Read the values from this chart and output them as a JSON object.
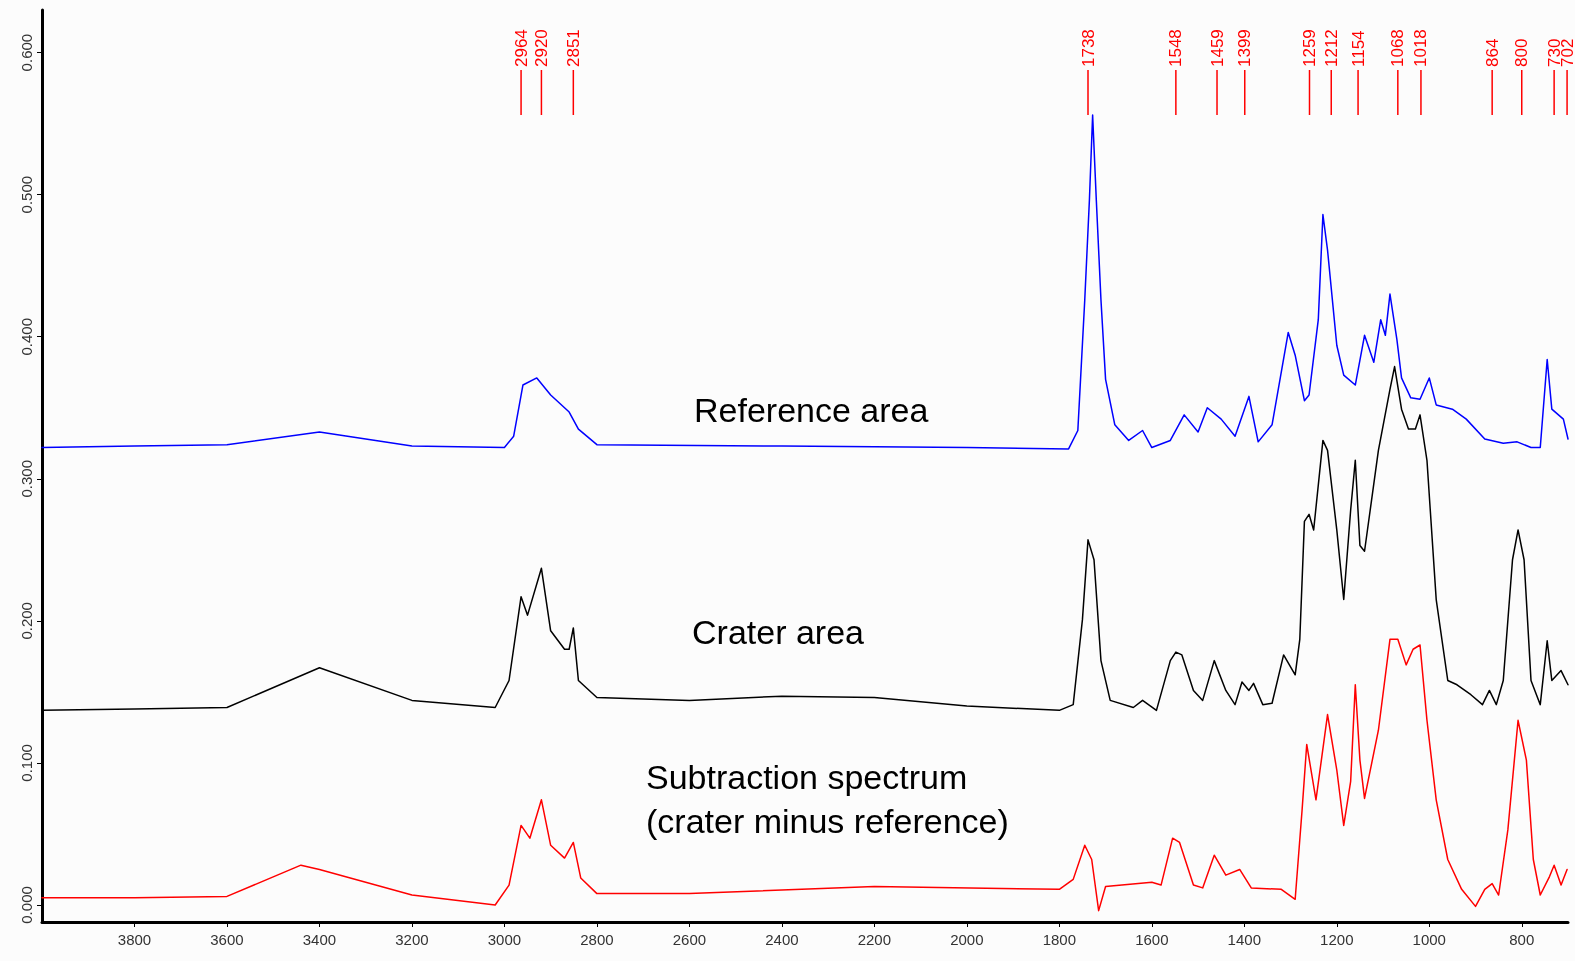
{
  "chart_data": {
    "type": "line",
    "xlim": [
      4000,
      700
    ],
    "xticks": [
      3800,
      3600,
      3400,
      3200,
      3000,
      2800,
      2600,
      2400,
      2200,
      2000,
      1800,
      1600,
      1400,
      1200,
      1000,
      800
    ],
    "ylim": [
      -0.012,
      0.63
    ],
    "yticks": [
      {
        "value": 0,
        "label": "0.000"
      },
      {
        "value": 0.1,
        "label": "0.100"
      },
      {
        "value": 0.2,
        "label": "0.200"
      },
      {
        "value": 0.3,
        "label": "0.300"
      },
      {
        "value": 0.4,
        "label": "0.400"
      },
      {
        "value": 0.5,
        "label": "0.500"
      },
      {
        "value": 0.6,
        "label": "0.600"
      }
    ],
    "marker": "none",
    "line_style": "solid",
    "series": [
      {
        "name": "Reference area",
        "color": "#0000ff",
        "x": [
          4000,
          3800,
          3600,
          3400,
          3200,
          3000,
          2980,
          2960,
          2930,
          2900,
          2860,
          2840,
          2800,
          2400,
          2000,
          1780,
          1760,
          1745,
          1735,
          1728,
          1720,
          1710,
          1700,
          1680,
          1650,
          1620,
          1600,
          1560,
          1530,
          1500,
          1480,
          1450,
          1420,
          1390,
          1370,
          1340,
          1305,
          1290,
          1270,
          1260,
          1240,
          1230,
          1220,
          1200,
          1185,
          1160,
          1140,
          1120,
          1105,
          1095,
          1085,
          1070,
          1060,
          1040,
          1020,
          1000,
          985,
          950,
          920,
          880,
          840,
          810,
          780,
          760,
          745,
          735,
          710,
          700
        ],
        "values": [
          0.322,
          0.323,
          0.324,
          0.333,
          0.323,
          0.322,
          0.33,
          0.366,
          0.371,
          0.359,
          0.347,
          0.335,
          0.324,
          0.323,
          0.322,
          0.321,
          0.334,
          0.426,
          0.496,
          0.556,
          0.496,
          0.426,
          0.37,
          0.338,
          0.327,
          0.334,
          0.322,
          0.327,
          0.345,
          0.333,
          0.35,
          0.342,
          0.33,
          0.358,
          0.326,
          0.338,
          0.403,
          0.387,
          0.355,
          0.359,
          0.412,
          0.486,
          0.461,
          0.394,
          0.373,
          0.366,
          0.401,
          0.382,
          0.412,
          0.401,
          0.43,
          0.398,
          0.371,
          0.357,
          0.356,
          0.371,
          0.352,
          0.349,
          0.342,
          0.328,
          0.325,
          0.326,
          0.322,
          0.322,
          0.384,
          0.349,
          0.342,
          0.328
        ]
      },
      {
        "name": "Crater area",
        "color": "#000000",
        "x": [
          4000,
          3800,
          3600,
          3400,
          3200,
          3020,
          2990,
          2964,
          2950,
          2920,
          2900,
          2870,
          2860,
          2851,
          2840,
          2800,
          2600,
          2400,
          2200,
          2000,
          1800,
          1770,
          1750,
          1738,
          1725,
          1710,
          1690,
          1640,
          1620,
          1590,
          1560,
          1548,
          1535,
          1510,
          1490,
          1465,
          1440,
          1420,
          1405,
          1390,
          1380,
          1360,
          1340,
          1315,
          1290,
          1280,
          1270,
          1260,
          1250,
          1230,
          1220,
          1200,
          1185,
          1170,
          1160,
          1150,
          1140,
          1110,
          1085,
          1075,
          1060,
          1045,
          1030,
          1020,
          1005,
          985,
          960,
          940,
          910,
          885,
          870,
          855,
          840,
          820,
          808,
          795,
          780,
          760,
          745,
          735,
          715,
          700
        ],
        "values": [
          0.137,
          0.138,
          0.139,
          0.167,
          0.144,
          0.139,
          0.158,
          0.217,
          0.204,
          0.237,
          0.193,
          0.18,
          0.18,
          0.195,
          0.158,
          0.146,
          0.144,
          0.147,
          0.146,
          0.14,
          0.137,
          0.141,
          0.201,
          0.257,
          0.243,
          0.172,
          0.144,
          0.139,
          0.144,
          0.137,
          0.172,
          0.178,
          0.176,
          0.151,
          0.144,
          0.172,
          0.151,
          0.141,
          0.157,
          0.151,
          0.156,
          0.141,
          0.142,
          0.176,
          0.162,
          0.187,
          0.27,
          0.275,
          0.264,
          0.327,
          0.32,
          0.264,
          0.215,
          0.278,
          0.313,
          0.253,
          0.249,
          0.32,
          0.363,
          0.379,
          0.349,
          0.335,
          0.335,
          0.345,
          0.313,
          0.215,
          0.158,
          0.155,
          0.148,
          0.141,
          0.151,
          0.141,
          0.158,
          0.243,
          0.264,
          0.243,
          0.158,
          0.141,
          0.186,
          0.158,
          0.165,
          0.155
        ]
      },
      {
        "name": "Subtraction spectrum\n(crater minus reference)",
        "color": "#ff0000",
        "x": [
          4000,
          3800,
          3600,
          3440,
          3400,
          3200,
          3020,
          2990,
          2964,
          2945,
          2920,
          2900,
          2870,
          2851,
          2835,
          2800,
          2600,
          2200,
          1800,
          1770,
          1745,
          1730,
          1715,
          1700,
          1600,
          1580,
          1555,
          1540,
          1510,
          1490,
          1465,
          1440,
          1410,
          1385,
          1320,
          1290,
          1275,
          1265,
          1245,
          1220,
          1200,
          1185,
          1170,
          1160,
          1150,
          1140,
          1110,
          1085,
          1068,
          1050,
          1035,
          1020,
          1005,
          985,
          960,
          930,
          900,
          880,
          864,
          850,
          830,
          808,
          790,
          775,
          760,
          740,
          730,
          715,
          702
        ],
        "values": [
          0.005,
          0.005,
          0.006,
          0.028,
          0.025,
          0.007,
          0.0,
          0.014,
          0.056,
          0.047,
          0.074,
          0.042,
          0.033,
          0.044,
          0.019,
          0.008,
          0.008,
          0.013,
          0.011,
          0.018,
          0.042,
          0.032,
          -0.004,
          0.013,
          0.016,
          0.014,
          0.047,
          0.044,
          0.014,
          0.012,
          0.035,
          0.021,
          0.025,
          0.012,
          0.011,
          0.004,
          0.067,
          0.113,
          0.074,
          0.134,
          0.095,
          0.056,
          0.087,
          0.155,
          0.102,
          0.075,
          0.123,
          0.187,
          0.187,
          0.169,
          0.18,
          0.183,
          0.13,
          0.074,
          0.032,
          0.011,
          -0.001,
          0.011,
          0.015,
          0.007,
          0.053,
          0.13,
          0.102,
          0.032,
          0.007,
          0.02,
          0.028,
          0.014,
          0.025
        ]
      }
    ],
    "ref_lines": [
      {
        "axis": "x",
        "value": 2964,
        "label": "2964",
        "color": "#ff0000"
      },
      {
        "axis": "x",
        "value": 2920,
        "label": "2920",
        "color": "#ff0000"
      },
      {
        "axis": "x",
        "value": 2851,
        "label": "2851",
        "color": "#ff0000"
      },
      {
        "axis": "x",
        "value": 1738,
        "label": "1738",
        "color": "#ff0000"
      },
      {
        "axis": "x",
        "value": 1548,
        "label": "1548",
        "color": "#ff0000"
      },
      {
        "axis": "x",
        "value": 1459,
        "label": "1459",
        "color": "#ff0000"
      },
      {
        "axis": "x",
        "value": 1399,
        "label": "1399",
        "color": "#ff0000"
      },
      {
        "axis": "x",
        "value": 1259,
        "label": "1259",
        "color": "#ff0000"
      },
      {
        "axis": "x",
        "value": 1212,
        "label": "1212",
        "color": "#ff0000"
      },
      {
        "axis": "x",
        "value": 1154,
        "label": "1154",
        "color": "#ff0000"
      },
      {
        "axis": "x",
        "value": 1068,
        "label": "1068",
        "color": "#ff0000"
      },
      {
        "axis": "x",
        "value": 1018,
        "label": "1018",
        "color": "#ff0000"
      },
      {
        "axis": "x",
        "value": 864,
        "label": "864",
        "color": "#ff0000"
      },
      {
        "axis": "x",
        "value": 800,
        "label": "800",
        "color": "#ff0000"
      },
      {
        "axis": "x",
        "value": 730,
        "label": "730",
        "color": "#ff0000"
      },
      {
        "axis": "x",
        "value": 702,
        "label": "702",
        "color": "#ff0000"
      }
    ]
  }
}
